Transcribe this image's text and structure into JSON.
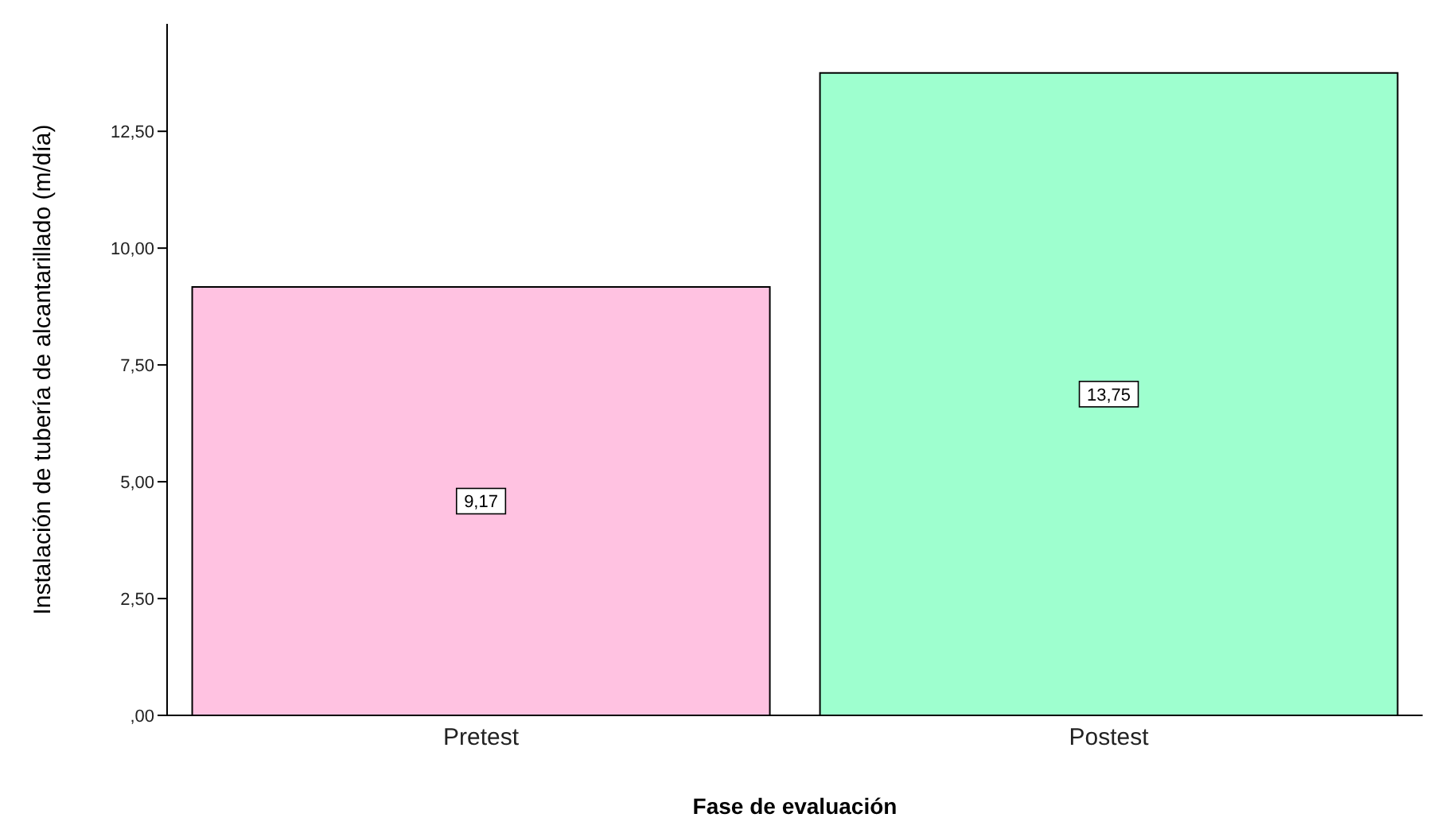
{
  "chart_data": {
    "type": "bar",
    "xlabel": "Fase de evaluación",
    "ylabel": "Instalación de tubería de alcantarillado (m/día)",
    "categories": [
      "Pretest",
      "Postest"
    ],
    "values": [
      9.17,
      13.75
    ],
    "colors": [
      "#ffc2e1",
      "#9effcf"
    ],
    "value_labels": [
      "9,17",
      "13,75"
    ],
    "ylim": [
      0,
      14.8
    ],
    "yticks": [
      {
        "value": 0,
        "label": ",00"
      },
      {
        "value": 2.5,
        "label": "2,50"
      },
      {
        "value": 5,
        "label": "5,00"
      },
      {
        "value": 7.5,
        "label": "7,50"
      },
      {
        "value": 10,
        "label": "10,00"
      },
      {
        "value": 12.5,
        "label": "12,50"
      }
    ],
    "grid": false,
    "legend": false
  }
}
